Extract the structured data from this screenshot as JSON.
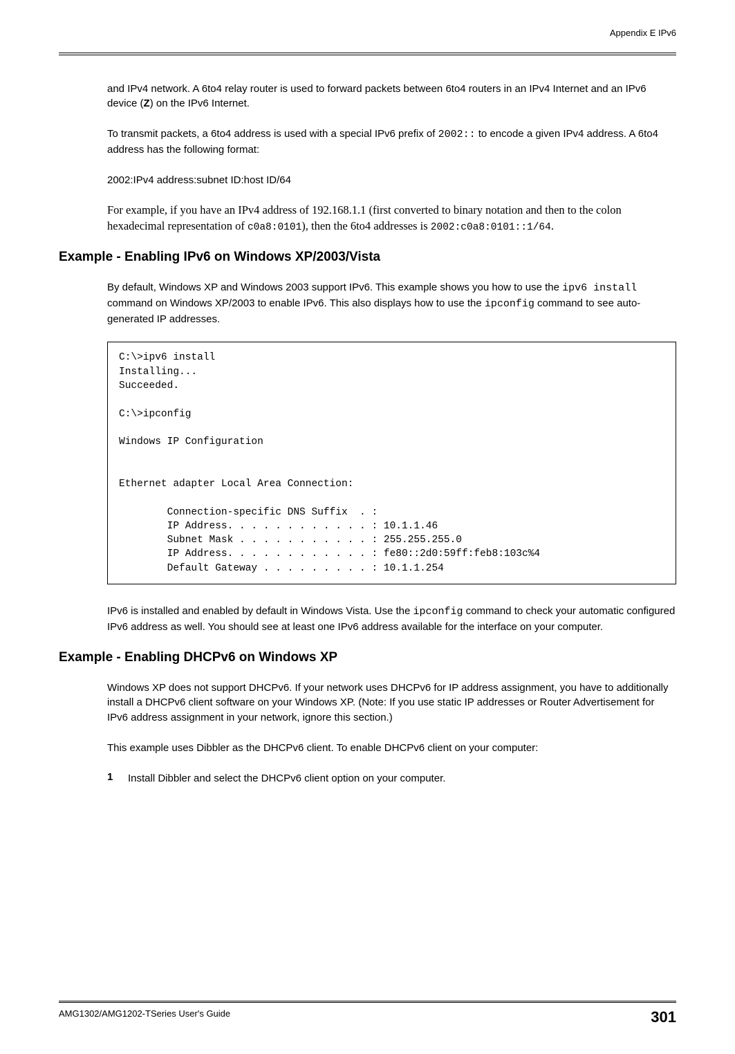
{
  "header": {
    "appendix": "Appendix E IPv6"
  },
  "body": {
    "para1_a": "and IPv4 network. A 6to4 relay router is used to forward packets between 6to4 routers in an IPv4 Internet and an IPv6 device (",
    "para1_z": "Z",
    "para1_b": ") on the IPv6 Internet.",
    "para2_a": "To transmit packets, a 6to4 address is used with a special IPv6 prefix of ",
    "para2_code1": "2002::",
    "para2_b": " to encode a given IPv4 address. A 6to4 address has the following format:",
    "para3": "2002:IPv4 address:subnet ID:host ID/64",
    "para4_a": "For example, if you have an IPv4 address of 192.168.1.1 (first converted to binary notation and then to the colon hexadecimal representation of ",
    "para4_code1": "c0a8:0101",
    "para4_b": "), then the 6to4 addresses is ",
    "para4_code2": "2002:c0a8:0101::1/64",
    "para4_c": ".",
    "h2_1": "Example - Enabling IPv6 on Windows XP/2003/Vista",
    "para5_a": "By default, Windows XP and Windows 2003 support IPv6. This example shows you how to use the ",
    "para5_code1": "ipv6 install",
    "para5_b": " command on Windows XP/2003 to enable IPv6. This also displays how to use the ",
    "para5_code2": "ipconfig",
    "para5_c": " command to see auto-generated IP addresses.",
    "codebox1": "C:\\>ipv6 install\nInstalling...\nSucceeded.\n\nC:\\>ipconfig\n\nWindows IP Configuration\n\n\nEthernet adapter Local Area Connection:\n\n        Connection-specific DNS Suffix  . : \n        IP Address. . . . . . . . . . . . : 10.1.1.46\n        Subnet Mask . . . . . . . . . . . : 255.255.255.0\n        IP Address. . . . . . . . . . . . : fe80::2d0:59ff:feb8:103c%4\n        Default Gateway . . . . . . . . . : 10.1.1.254",
    "para6_a": "IPv6 is installed and enabled by default in Windows Vista. Use the ",
    "para6_code1": "ipconfig",
    "para6_b": " command to check your automatic configured IPv6 address as well. You should see at least one IPv6 address available for the interface on your computer.",
    "h2_2": "Example - Enabling DHCPv6 on Windows XP",
    "para7": "Windows XP does not support DHCPv6. If your network uses DHCPv6 for IP address assignment, you have to additionally install a DHCPv6 client software on your Windows XP. (Note: If you use static IP addresses or Router Advertisement for IPv6 address assignment in your network, ignore this section.)",
    "para8": "This example uses Dibbler as the DHCPv6 client. To enable DHCPv6 client on your computer:",
    "list1_num": "1",
    "list1_text": "Install Dibbler and select the DHCPv6 client option on your computer."
  },
  "footer": {
    "guide": "AMG1302/AMG1202-TSeries User's Guide",
    "page": "301"
  }
}
